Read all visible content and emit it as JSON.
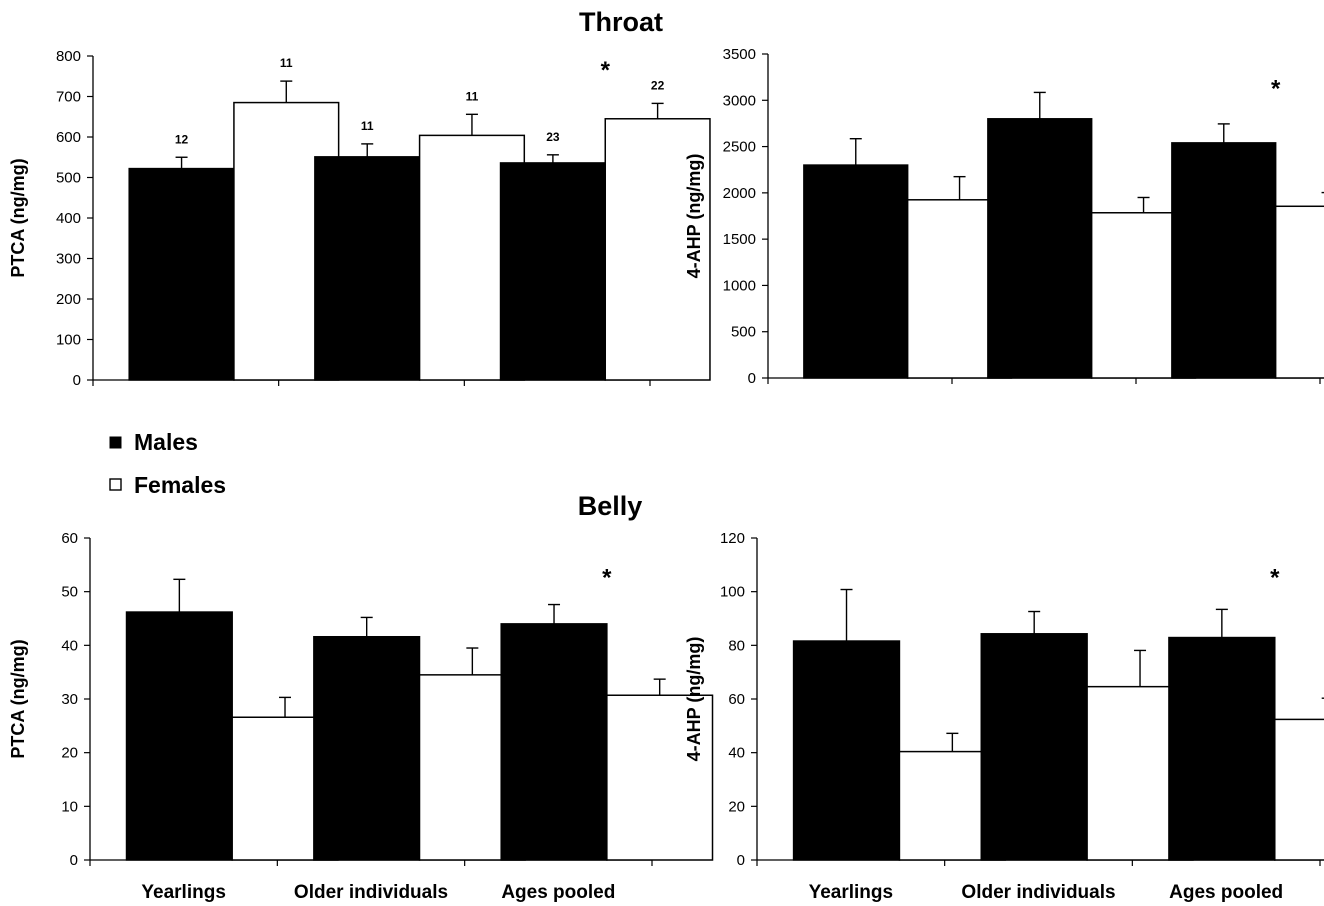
{
  "section_titles": {
    "top": "Throat",
    "bottom": "Belly"
  },
  "legend": [
    {
      "label": "Males",
      "color": "#000000"
    },
    {
      "label": "Females",
      "color": "#ffffff"
    }
  ],
  "colors": {
    "males": "#000000",
    "females": "#ffffff",
    "stroke": "#000000"
  },
  "chart_data": [
    {
      "type": "bar",
      "title": "Throat",
      "ylabel": "PTCA (ng/mg)",
      "xlabel": "",
      "categories": [
        "Yearlings",
        "Older individuals",
        "Ages pooled"
      ],
      "show_category_labels": false,
      "ylim": [
        0,
        800
      ],
      "yticks": [
        0,
        100,
        200,
        300,
        400,
        500,
        600,
        700,
        800
      ],
      "series": [
        {
          "name": "Males",
          "values": [
            522,
            551,
            536
          ],
          "errors": [
            28,
            32,
            20
          ],
          "n": [
            "12",
            "11",
            "23"
          ]
        },
        {
          "name": "Females",
          "values": [
            685,
            604,
            645
          ],
          "errors": [
            53,
            52,
            38
          ],
          "n": [
            "11",
            "11",
            "22"
          ]
        }
      ],
      "annotations": [
        {
          "category": "Ages pooled",
          "text": "*",
          "value": 770
        }
      ]
    },
    {
      "type": "bar",
      "title": "Throat",
      "ylabel": "4-AHP (ng/mg)",
      "xlabel": "",
      "categories": [
        "Yearlings",
        "Older individuals",
        "Ages pooled"
      ],
      "show_category_labels": false,
      "ylim": [
        0,
        3500
      ],
      "yticks": [
        0,
        500,
        1000,
        1500,
        2000,
        2500,
        3000,
        3500
      ],
      "series": [
        {
          "name": "Males",
          "values": [
            2300,
            2800,
            2540
          ],
          "errors": [
            285,
            285,
            205
          ],
          "n": []
        },
        {
          "name": "Females",
          "values": [
            1925,
            1785,
            1855
          ],
          "errors": [
            250,
            165,
            148
          ],
          "n": []
        }
      ],
      "annotations": [
        {
          "category": "Ages pooled",
          "text": "*",
          "value": 3150
        }
      ]
    },
    {
      "type": "bar",
      "title": "Belly",
      "ylabel": "PTCA (ng/mg)",
      "xlabel": "",
      "categories": [
        "Yearlings",
        "Older individuals",
        "Ages pooled"
      ],
      "show_category_labels": true,
      "ylim": [
        0,
        60
      ],
      "yticks": [
        0,
        10,
        20,
        30,
        40,
        50,
        60
      ],
      "series": [
        {
          "name": "Males",
          "values": [
            46.2,
            41.6,
            44.0
          ],
          "errors": [
            6.1,
            3.6,
            3.6
          ],
          "n": []
        },
        {
          "name": "Females",
          "values": [
            26.6,
            34.5,
            30.7
          ],
          "errors": [
            3.7,
            5.0,
            3.0
          ],
          "n": []
        }
      ],
      "annotations": [
        {
          "category": "Ages pooled",
          "text": "*",
          "value": 53
        }
      ]
    },
    {
      "type": "bar",
      "title": "Belly",
      "ylabel": "4-AHP (ng/mg)",
      "xlabel": "",
      "categories": [
        "Yearlings",
        "Older individuals",
        "Ages pooled"
      ],
      "show_category_labels": true,
      "ylim": [
        0,
        120
      ],
      "yticks": [
        0,
        20,
        40,
        60,
        80,
        100,
        120
      ],
      "series": [
        {
          "name": "Males",
          "values": [
            81.6,
            84.3,
            82.9
          ],
          "errors": [
            19.2,
            8.3,
            10.5
          ],
          "n": []
        },
        {
          "name": "Females",
          "values": [
            40.4,
            64.6,
            52.4
          ],
          "errors": [
            6.8,
            13.5,
            7.9
          ],
          "n": []
        }
      ],
      "annotations": [
        {
          "category": "Ages pooled",
          "text": "*",
          "value": 106
        }
      ]
    }
  ]
}
